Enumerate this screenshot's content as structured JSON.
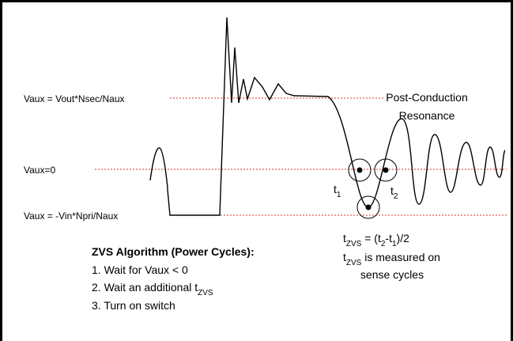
{
  "levels": {
    "vout": "Vaux = Vout*Nsec/Naux",
    "zero": "Vaux=0",
    "vin": "Vaux = -Vin*Npri/Naux"
  },
  "resonance": [
    "Post-Conduction",
    "Resonance"
  ],
  "t1": {
    "main": "t",
    "sub": "1"
  },
  "t2": {
    "main": "t",
    "sub": "2"
  },
  "tzvs": {
    "main": "t",
    "sub": "ZVS",
    "a": " = (t",
    "sub2": "2",
    "b": "-t",
    "sub3": "1",
    "c": ")/2"
  },
  "measured": {
    "main": "t",
    "sub": "ZVS",
    "rest": " is measured on",
    "line2": "sense cycles"
  },
  "algorithm": {
    "title": "ZVS Algorithm (Power Cycles):",
    "step1": "1. Wait for Vaux < 0",
    "step2": {
      "main": "2. Wait an additional t",
      "sub": "ZVS"
    },
    "step3": "3. Turn on switch"
  }
}
